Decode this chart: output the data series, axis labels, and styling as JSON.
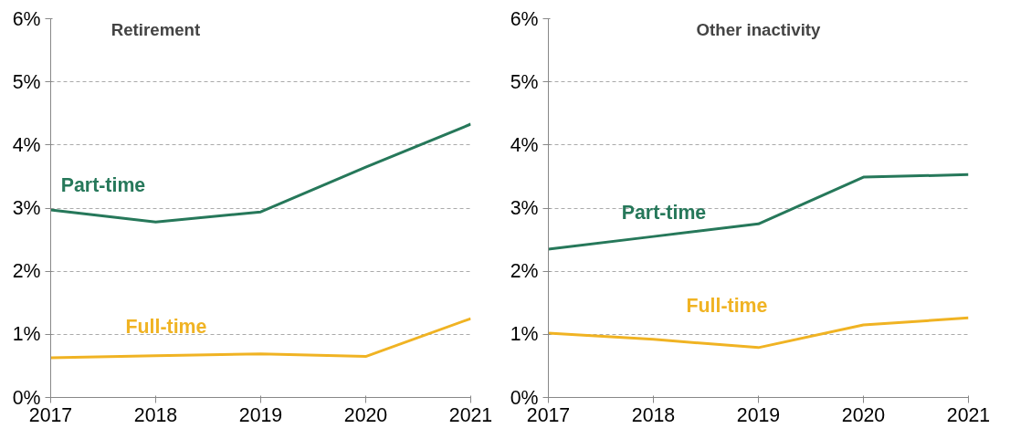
{
  "chart_data": [
    {
      "type": "line",
      "title": "Retirement",
      "x": [
        2017,
        2018,
        2019,
        2020,
        2021
      ],
      "xlim": [
        2017,
        2021
      ],
      "xticks": [
        2017,
        2018,
        2019,
        2020,
        2021
      ],
      "ylim": [
        0,
        6
      ],
      "yticks": [
        {
          "value": 0,
          "label": "0%"
        },
        {
          "value": 1,
          "label": "1%"
        },
        {
          "value": 2,
          "label": "2%"
        },
        {
          "value": 3,
          "label": "3%"
        },
        {
          "value": 4,
          "label": "4%"
        },
        {
          "value": 5,
          "label": "5%"
        },
        {
          "value": 6,
          "label": "6%"
        }
      ],
      "grid": "y",
      "legend": false,
      "series": [
        {
          "name": "Part-time",
          "color": "#26785a",
          "values": [
            2.97,
            2.78,
            2.94,
            3.65,
            4.33
          ]
        },
        {
          "name": "Full-time",
          "color": "#f0b323",
          "values": [
            0.63,
            0.66,
            0.69,
            0.65,
            1.25
          ]
        }
      ]
    },
    {
      "type": "line",
      "title": "Other inactivity",
      "x": [
        2017,
        2018,
        2019,
        2020,
        2021
      ],
      "xlim": [
        2017,
        2021
      ],
      "xticks": [
        2017,
        2018,
        2019,
        2020,
        2021
      ],
      "ylim": [
        0,
        6
      ],
      "yticks": [
        {
          "value": 0,
          "label": "0%"
        },
        {
          "value": 1,
          "label": "1%"
        },
        {
          "value": 2,
          "label": "2%"
        },
        {
          "value": 3,
          "label": "3%"
        },
        {
          "value": 4,
          "label": "4%"
        },
        {
          "value": 5,
          "label": "5%"
        },
        {
          "value": 6,
          "label": "6%"
        }
      ],
      "grid": "y",
      "legend": false,
      "series": [
        {
          "name": "Part-time",
          "color": "#26785a",
          "values": [
            2.35,
            2.55,
            2.75,
            3.49,
            3.53
          ]
        },
        {
          "name": "Full-time",
          "color": "#f0b323",
          "values": [
            1.02,
            0.92,
            0.79,
            1.15,
            1.26
          ]
        }
      ]
    }
  ]
}
